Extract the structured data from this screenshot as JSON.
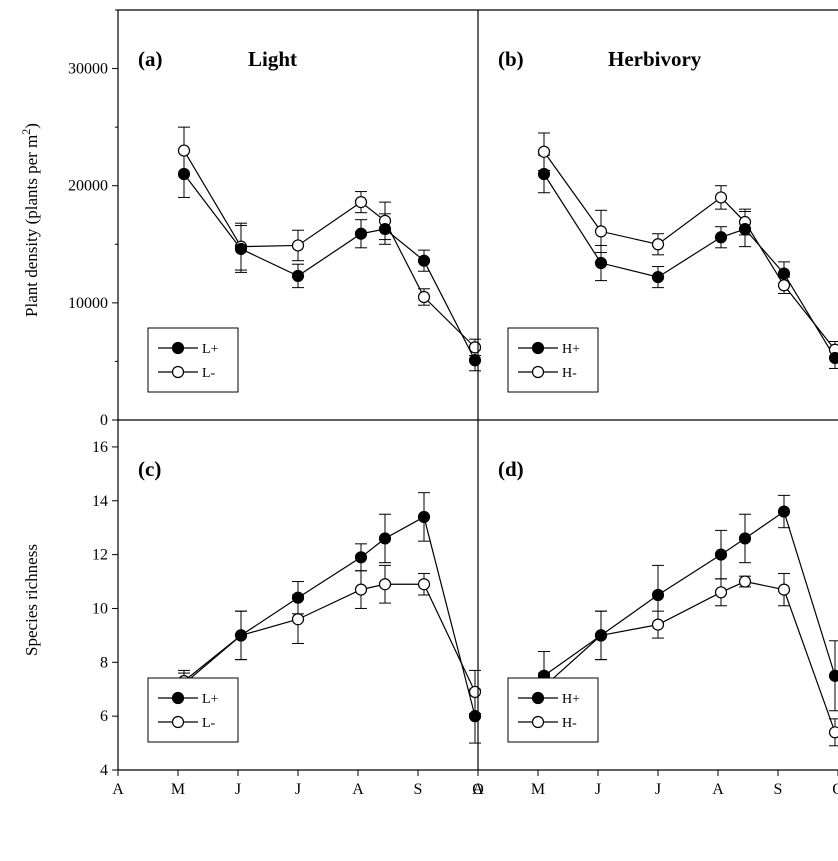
{
  "y_labels": {
    "top": "Plant density (plants per m",
    "top_superscript": "2",
    "top_close": ")",
    "bottom": "Species richness"
  },
  "y_ticks": {
    "top": [
      "0",
      "10000",
      "20000",
      "30000"
    ],
    "bottom": [
      "4",
      "6",
      "8",
      "10",
      "12",
      "14",
      "16"
    ]
  },
  "x_ticks": [
    "A",
    "M",
    "J",
    "J",
    "A",
    "S",
    "O"
  ],
  "chart_data": [
    {
      "id": "a",
      "type": "line",
      "panel_label": "(a)",
      "title": "Light",
      "ylim": [
        0,
        35000
      ],
      "x": [
        1.1,
        2.05,
        3.0,
        4.05,
        4.45,
        5.1,
        5.95
      ],
      "series": [
        {
          "name": "L+",
          "marker": "filled",
          "values": [
            21000,
            14600,
            12300,
            15900,
            16300,
            13600,
            5100
          ],
          "errors": [
            2000,
            2000,
            1000,
            1200,
            1300,
            900,
            900
          ]
        },
        {
          "name": "L-",
          "marker": "open",
          "values": [
            23000,
            14800,
            14900,
            18600,
            17000,
            10500,
            6200
          ],
          "errors": [
            2000,
            2000,
            1300,
            900,
            1600,
            700,
            700
          ]
        }
      ],
      "legend": "bottom-left"
    },
    {
      "id": "b",
      "type": "line",
      "panel_label": "(b)",
      "title": "Herbivory",
      "ylim": [
        0,
        35000
      ],
      "x": [
        1.1,
        2.05,
        3.0,
        4.05,
        4.45,
        5.1,
        5.95
      ],
      "series": [
        {
          "name": "H+",
          "marker": "filled",
          "values": [
            21000,
            13400,
            12200,
            15600,
            16300,
            12500,
            5300
          ],
          "errors": [
            1600,
            1500,
            900,
            900,
            1500,
            1000,
            900
          ]
        },
        {
          "name": "H-",
          "marker": "open",
          "values": [
            22900,
            16100,
            15000,
            19000,
            16900,
            11500,
            6000
          ],
          "errors": [
            1600,
            1800,
            900,
            1000,
            1100,
            700,
            700
          ]
        }
      ],
      "legend": "bottom-left"
    },
    {
      "id": "c",
      "type": "line",
      "panel_label": "(c)",
      "ylim": [
        4,
        17
      ],
      "x": [
        1.1,
        2.05,
        3.0,
        4.05,
        4.45,
        5.1,
        5.95
      ],
      "series": [
        {
          "name": "L+",
          "marker": "filled",
          "values": [
            7.2,
            9.0,
            10.4,
            11.9,
            12.6,
            13.4,
            6.0
          ],
          "errors": [
            0.4,
            0.9,
            0.6,
            0.5,
            0.9,
            0.9,
            1.0
          ]
        },
        {
          "name": "L-",
          "marker": "open",
          "values": [
            7.3,
            9.0,
            9.6,
            10.7,
            10.9,
            10.9,
            6.9
          ],
          "errors": [
            0.4,
            0.9,
            0.9,
            0.7,
            0.7,
            0.4,
            0.8
          ]
        }
      ],
      "legend": "bottom-left"
    },
    {
      "id": "d",
      "type": "line",
      "panel_label": "(d)",
      "ylim": [
        4,
        17
      ],
      "x": [
        1.1,
        2.05,
        3.0,
        4.05,
        4.45,
        5.1,
        5.95
      ],
      "series": [
        {
          "name": "H+",
          "marker": "filled",
          "values": [
            7.5,
            9.0,
            10.5,
            12.0,
            12.6,
            13.6,
            7.5
          ],
          "errors": [
            0.9,
            0.9,
            1.1,
            0.9,
            0.9,
            0.6,
            1.3
          ]
        },
        {
          "name": "H-",
          "marker": "open",
          "values": [
            7.1,
            9.0,
            9.4,
            10.6,
            11.0,
            10.7,
            5.4
          ],
          "errors": [
            0.5,
            0.9,
            0.5,
            0.5,
            0.2,
            0.6,
            0.5
          ]
        }
      ],
      "legend": "bottom-left"
    }
  ]
}
